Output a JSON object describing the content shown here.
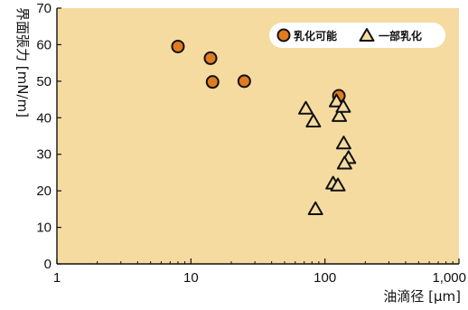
{
  "chart_data": {
    "type": "scatter",
    "xlabel": "油滴径 [μm]",
    "ylabel": "界面張力 [mN/m]",
    "x_scale": "log",
    "xlim": [
      1,
      1000
    ],
    "ylim": [
      0,
      70
    ],
    "x_ticks": [
      {
        "value": 1,
        "label": "1"
      },
      {
        "value": 10,
        "label": "10"
      },
      {
        "value": 100,
        "label": "100"
      },
      {
        "value": 1000,
        "label": "1,000"
      }
    ],
    "y_ticks": [
      {
        "value": 0,
        "label": "0"
      },
      {
        "value": 10,
        "label": "10"
      },
      {
        "value": 20,
        "label": "20"
      },
      {
        "value": 30,
        "label": "30"
      },
      {
        "value": 40,
        "label": "40"
      },
      {
        "value": 50,
        "label": "50"
      },
      {
        "value": 60,
        "label": "60"
      },
      {
        "value": 70,
        "label": "70"
      }
    ],
    "grid": false,
    "legend_position": "top-right",
    "series": [
      {
        "name": "乳化可能",
        "marker": "circle",
        "color": "#e07b1f",
        "points": [
          {
            "x": 8,
            "y": 59.5
          },
          {
            "x": 14,
            "y": 56.3
          },
          {
            "x": 14.5,
            "y": 49.8
          },
          {
            "x": 25,
            "y": 50
          },
          {
            "x": 127,
            "y": 46
          }
        ]
      },
      {
        "name": "一部乳化",
        "marker": "triangle",
        "color": "#f5dba0",
        "points": [
          {
            "x": 72,
            "y": 42.5
          },
          {
            "x": 82,
            "y": 39
          },
          {
            "x": 122,
            "y": 44.5
          },
          {
            "x": 128,
            "y": 40.5
          },
          {
            "x": 137,
            "y": 43
          },
          {
            "x": 138,
            "y": 33
          },
          {
            "x": 150,
            "y": 29
          },
          {
            "x": 140,
            "y": 27.5
          },
          {
            "x": 115,
            "y": 22
          },
          {
            "x": 125,
            "y": 21.5
          },
          {
            "x": 85,
            "y": 15
          }
        ]
      }
    ]
  },
  "colors": {
    "plot_background": "#f5dba0",
    "axis": "#111111",
    "circle_fill": "#e07b1f",
    "marker_stroke": "#111111"
  }
}
